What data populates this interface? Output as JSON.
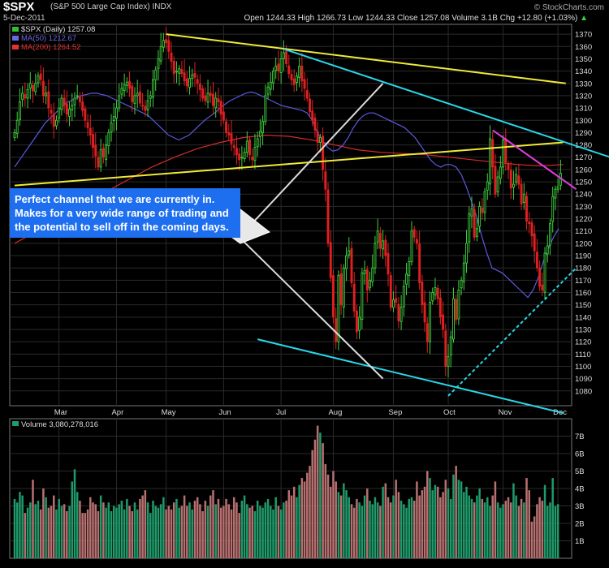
{
  "header": {
    "symbol": "$SPX",
    "description": "(S&P 500 Large Cap Index)",
    "exchange": "INDX",
    "date": "5-Dec-2011",
    "ohlc_text": "Open 1244.33  High 1266.73  Low 1244.33  Close 1257.08  Volume 3.1B  Chg +12.80 (+1.03%)",
    "ohlc_arrow": "▲",
    "brand": "© StockCharts.com"
  },
  "chart_data": [
    {
      "type": "candlestick",
      "legend": [
        {
          "name": "$SPX (Daily) 1257.08",
          "color": "#2fbf2f"
        },
        {
          "name": "MA(50) 1212.67",
          "color": "#6a6ae8"
        },
        {
          "name": "MA(200) 1264.52",
          "color": "#e23232"
        }
      ],
      "ylim": [
        1068,
        1378
      ],
      "yticks": [
        1080,
        1090,
        1100,
        1110,
        1120,
        1130,
        1140,
        1150,
        1160,
        1170,
        1180,
        1190,
        1200,
        1210,
        1220,
        1230,
        1240,
        1250,
        1260,
        1270,
        1280,
        1290,
        1300,
        1310,
        1320,
        1330,
        1340,
        1350,
        1360,
        1370
      ],
      "xaxis_months": [
        {
          "label": "Mar",
          "day": 17
        },
        {
          "label": "Apr",
          "day": 39
        },
        {
          "label": "May",
          "day": 58
        },
        {
          "label": "Jun",
          "day": 80
        },
        {
          "label": "Jul",
          "day": 102
        },
        {
          "label": "Aug",
          "day": 122
        },
        {
          "label": "Sep",
          "day": 145
        },
        {
          "label": "Oct",
          "day": 166
        },
        {
          "label": "Nov",
          "day": 187
        },
        {
          "label": "Dec",
          "day": 208
        }
      ],
      "days": 212,
      "closes": [
        1290,
        1300,
        1315,
        1322,
        1318,
        1325,
        1330,
        1324,
        1330,
        1336,
        1333,
        1320,
        1322,
        1310,
        1306,
        1295,
        1300,
        1310,
        1318,
        1312,
        1305,
        1309,
        1312,
        1318,
        1320,
        1315,
        1308,
        1300,
        1294,
        1288,
        1278,
        1271,
        1262,
        1276,
        1270,
        1280,
        1290,
        1298,
        1303,
        1310,
        1320,
        1326,
        1329,
        1331,
        1326,
        1315,
        1320,
        1322,
        1314,
        1312,
        1308,
        1316,
        1320,
        1333,
        1341,
        1350,
        1360,
        1365,
        1363,
        1356,
        1348,
        1338,
        1340,
        1342,
        1338,
        1332,
        1328,
        1334,
        1337,
        1335,
        1330,
        1325,
        1318,
        1316,
        1322,
        1320,
        1312,
        1318,
        1315,
        1305,
        1300,
        1290,
        1288,
        1281,
        1278,
        1272,
        1268,
        1270,
        1274,
        1283,
        1272,
        1268,
        1278,
        1285,
        1291,
        1299,
        1320,
        1327,
        1331,
        1340,
        1344,
        1340,
        1350,
        1355,
        1346,
        1338,
        1333,
        1329,
        1336,
        1344,
        1332,
        1326,
        1318,
        1307,
        1300,
        1292,
        1282,
        1286,
        1260,
        1244,
        1200,
        1172,
        1140,
        1120,
        1174,
        1150,
        1180,
        1190,
        1194,
        1168,
        1145,
        1128,
        1140,
        1176,
        1178,
        1162,
        1170,
        1180,
        1200,
        1210,
        1196,
        1202,
        1190,
        1175,
        1148,
        1154,
        1152,
        1137,
        1148,
        1165,
        1175,
        1185,
        1210,
        1205,
        1200,
        1168,
        1150,
        1136,
        1120,
        1152,
        1160,
        1164,
        1155,
        1140,
        1130,
        1100,
        1108,
        1124,
        1155,
        1138,
        1162,
        1170,
        1184,
        1200,
        1224,
        1228,
        1205,
        1212,
        1230,
        1225,
        1242,
        1250,
        1285,
        1262,
        1240,
        1254,
        1262,
        1284,
        1266,
        1260,
        1245,
        1248,
        1256,
        1248,
        1232,
        1240,
        1218,
        1216,
        1206,
        1194,
        1180,
        1165,
        1162,
        1192,
        1198,
        1216,
        1238,
        1244,
        1246,
        1257
      ],
      "ma50": [
        1262,
        1268,
        1274,
        1280,
        1286,
        1292,
        1298,
        1302,
        1306,
        1310,
        1314,
        1316,
        1318,
        1320,
        1321,
        1322,
        1322,
        1321,
        1320,
        1318,
        1316,
        1314,
        1312,
        1310,
        1308,
        1306,
        1304,
        1300,
        1296,
        1292,
        1288,
        1286,
        1284,
        1286,
        1288,
        1292,
        1296,
        1300,
        1303,
        1306,
        1310,
        1313,
        1316,
        1318,
        1320,
        1322,
        1323,
        1322,
        1320,
        1318,
        1316,
        1314,
        1312,
        1311,
        1310,
        1309,
        1308,
        1306,
        1300,
        1290,
        1283,
        1278,
        1275,
        1276,
        1280,
        1286,
        1294,
        1300,
        1304,
        1306,
        1306,
        1304,
        1302,
        1300,
        1298,
        1296,
        1294,
        1290,
        1286,
        1280,
        1274,
        1268,
        1264,
        1262,
        1264,
        1264,
        1262,
        1256,
        1246,
        1234,
        1222,
        1206,
        1192,
        1180,
        1178,
        1176,
        1172,
        1168,
        1164,
        1160,
        1156,
        1162,
        1172,
        1185,
        1196,
        1205,
        1212
      ],
      "ma50_start_day": 0,
      "ma50_x_step": 1.965,
      "ma200": [
        1200,
        1210,
        1220,
        1232,
        1242,
        1252,
        1262,
        1270,
        1277,
        1282,
        1286,
        1288,
        1287,
        1284,
        1280,
        1276,
        1274,
        1273,
        1272,
        1270,
        1268,
        1266,
        1264,
        1263,
        1264
      ],
      "ma200_start_day": 0,
      "ma200_x_step": 8.75,
      "trendlines": [
        {
          "name": "upper-yellow-resistance",
          "color": "#f0ea3a",
          "d1": 58,
          "v1": 1370,
          "d2": 211,
          "v2": 1330
        },
        {
          "name": "lower-yellow-support",
          "color": "#f0ea3a",
          "d1": 0,
          "v1": 1247,
          "d2": 210,
          "v2": 1282
        },
        {
          "name": "upper-cyan-channel",
          "color": "#2ad6e8",
          "d1": 103,
          "v1": 1358,
          "d2": 228,
          "v2": 1270
        },
        {
          "name": "lower-cyan-channel",
          "color": "#2ad6e8",
          "d1": 93,
          "v1": 1122,
          "d2": 210,
          "v2": 1062
        },
        {
          "name": "magenta-short-term",
          "color": "#e03ee0",
          "d1": 183,
          "v1": 1292,
          "d2": 215,
          "v2": 1244
        },
        {
          "name": "dotted-cyan-uptrend",
          "color": "#2ad6e8",
          "d1": 166,
          "v1": 1076,
          "d2": 215,
          "v2": 1180,
          "dashed": true
        },
        {
          "name": "white-fan-upper",
          "color": "#dcdcdc",
          "d1": 86,
          "v1": 1205,
          "d2": 141,
          "v2": 1330
        },
        {
          "name": "white-fan-lower",
          "color": "#dcdcdc",
          "d1": 86,
          "v1": 1205,
          "d2": 141,
          "v2": 1090
        }
      ]
    },
    {
      "type": "bar",
      "name": "Volume",
      "legend": "Volume 3,080,278,016",
      "ylim": [
        0,
        8
      ],
      "yticks": [
        {
          "label": "1B",
          "v": 1
        },
        {
          "label": "2B",
          "v": 2
        },
        {
          "label": "3B",
          "v": 3
        },
        {
          "label": "4B",
          "v": 4
        },
        {
          "label": "5B",
          "v": 5
        },
        {
          "label": "6B",
          "v": 6
        },
        {
          "label": "7B",
          "v": 7
        }
      ],
      "values": [
        3.4,
        3.2,
        3.8,
        3.6,
        2.6,
        2.9,
        3.2,
        4.5,
        3.1,
        3.3,
        2.8,
        4.0,
        3.5,
        2.9,
        3.0,
        3.6,
        2.8,
        3.4,
        3.0,
        3.1,
        2.7,
        3.0,
        4.4,
        5.1,
        3.8,
        3.3,
        2.6,
        2.6,
        2.8,
        3.5,
        3.2,
        3.1,
        2.7,
        3.6,
        3.2,
        2.9,
        3.2,
        2.7,
        3.0,
        2.9,
        3.1,
        3.3,
        2.8,
        3.4,
        3.0,
        2.7,
        3.2,
        2.8,
        3.4,
        3.6,
        3.9,
        3.2,
        2.6,
        3.3,
        3.0,
        2.9,
        3.1,
        3.5,
        2.8,
        3.0,
        2.8,
        3.2,
        3.4,
        2.9,
        3.0,
        3.6,
        3.0,
        3.2,
        2.8,
        3.3,
        3.5,
        3.1,
        2.7,
        3.3,
        3.0,
        3.6,
        3.9,
        3.1,
        3.4,
        2.9,
        3.0,
        3.4,
        3.1,
        2.8,
        3.5,
        3.2,
        2.6,
        3.3,
        3.6,
        3.1,
        2.9,
        3.0,
        2.7,
        3.3,
        3.0,
        2.9,
        3.2,
        3.4,
        3.0,
        2.8,
        3.5,
        3.0,
        2.8,
        3.2,
        3.3,
        3.9,
        3.6,
        4.1,
        3.5,
        4.2,
        4.6,
        4.4,
        4.9,
        5.3,
        6.2,
        6.8,
        7.6,
        7.2,
        6.6,
        5.4,
        4.8,
        4.1,
        5.0,
        4.4,
        3.8,
        3.6,
        4.3,
        3.9,
        3.5,
        3.1,
        2.9,
        3.4,
        3.2,
        3.0,
        3.6,
        4.0,
        3.3,
        3.1,
        3.5,
        3.2,
        3.0,
        4.1,
        4.3,
        3.5,
        3.2,
        3.6,
        4.5,
        3.8,
        3.3,
        3.1,
        2.9,
        3.4,
        3.5,
        3.3,
        4.4,
        3.6,
        3.9,
        4.1,
        5.0,
        4.6,
        3.9,
        4.2,
        4.1,
        3.5,
        3.8,
        4.5,
        4.0,
        3.4,
        4.8,
        5.3,
        4.5,
        4.4,
        3.8,
        4.1,
        3.6,
        3.4,
        3.2,
        3.6,
        4.0,
        3.4,
        3.2,
        3.5,
        3.0,
        3.6,
        4.4,
        3.2,
        2.9,
        3.1,
        3.3,
        3.5,
        3.2,
        4.3,
        3.6,
        3.0,
        3.4,
        3.2,
        4.6,
        3.9,
        2.1,
        2.4,
        3.1,
        3.5,
        3.3,
        4.2,
        3.0,
        3.2,
        4.6,
        3.0,
        3.1
      ],
      "value_unit": "billions"
    }
  ],
  "annotation": {
    "text": "Perfect channel that we are currently in. Makes for a very wide range of trading and the potential to sell off in the coming days."
  }
}
